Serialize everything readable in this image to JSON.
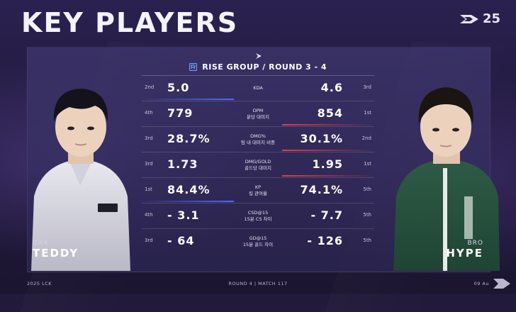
{
  "header": {
    "title": "KEY PLAYERS",
    "season": "25"
  },
  "subheader": {
    "label": "RISE GROUP / ROUND 3 - 4"
  },
  "left_player": {
    "team": "DRX",
    "name": "TEDDY"
  },
  "right_player": {
    "team": "BRO",
    "name": "HYPE"
  },
  "stats": [
    {
      "label": "KDA",
      "sub": "",
      "left_rank": "2nd",
      "left_value": "5.0",
      "right_value": "4.6",
      "right_rank": "3rd",
      "winner": "left"
    },
    {
      "label": "DPM",
      "sub": "분당 대미지",
      "left_rank": "4th",
      "left_value": "779",
      "right_value": "854",
      "right_rank": "1st",
      "winner": "right"
    },
    {
      "label": "DMG%",
      "sub": "팀 내 대미지 비중",
      "left_rank": "3rd",
      "left_value": "28.7%",
      "right_value": "30.1%",
      "right_rank": "2nd",
      "winner": "right"
    },
    {
      "label": "DMG/GOLD",
      "sub": "골드당 대미지",
      "left_rank": "3rd",
      "left_value": "1.73",
      "right_value": "1.95",
      "right_rank": "1st",
      "winner": "right"
    },
    {
      "label": "KP",
      "sub": "킬 관여율",
      "left_rank": "1st",
      "left_value": "84.4%",
      "right_value": "74.1%",
      "right_rank": "5th",
      "winner": "left"
    },
    {
      "label": "CSD@15",
      "sub": "15분 CS 차이",
      "left_rank": "4th",
      "left_value": "- 3.1",
      "right_value": "- 7.7",
      "right_rank": "5th",
      "winner": "none"
    },
    {
      "label": "GD@15",
      "sub": "15분 골드 차이",
      "left_rank": "3rd",
      "left_value": "- 64",
      "right_value": "- 126",
      "right_rank": "5th",
      "winner": "none"
    }
  ],
  "footer": {
    "left": "2025 LCK",
    "center": "ROUND 4  |  MATCH 117",
    "right": "09 Au"
  },
  "colors": {
    "left_accent": "#4e6bff",
    "right_accent": "#e43c4c",
    "bg": "#211a3a"
  }
}
